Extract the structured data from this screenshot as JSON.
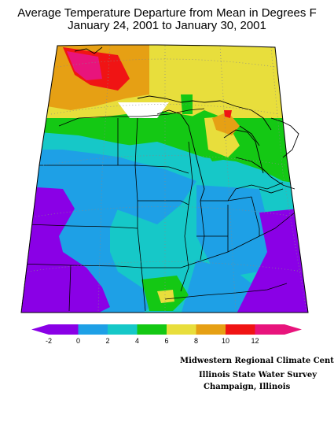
{
  "header": {
    "title_line1": "Average Temperature Departure from Mean in Degrees F",
    "title_line2": "January 24, 2001  to January 30, 2001"
  },
  "legend": {
    "colors": [
      "#8a00e6",
      "#1ea0e6",
      "#16c8c8",
      "#14c814",
      "#e8de3c",
      "#e6a014",
      "#f01414",
      "#e8147c"
    ],
    "tick_labels": [
      "-2",
      "0",
      "2",
      "4",
      "6",
      "8",
      "10",
      "12"
    ]
  },
  "credits": {
    "line1": "Midwestern Regional Climate Center",
    "line2": "Illinois State Water Survey",
    "line3": "Champaign, Illinois"
  },
  "chart_data": {
    "type": "contour map",
    "variable": "Average Temperature Departure from Mean (°F)",
    "contour_levels": [
      -2,
      0,
      2,
      4,
      6,
      8,
      10,
      12
    ],
    "region": "Midwest United States"
  }
}
